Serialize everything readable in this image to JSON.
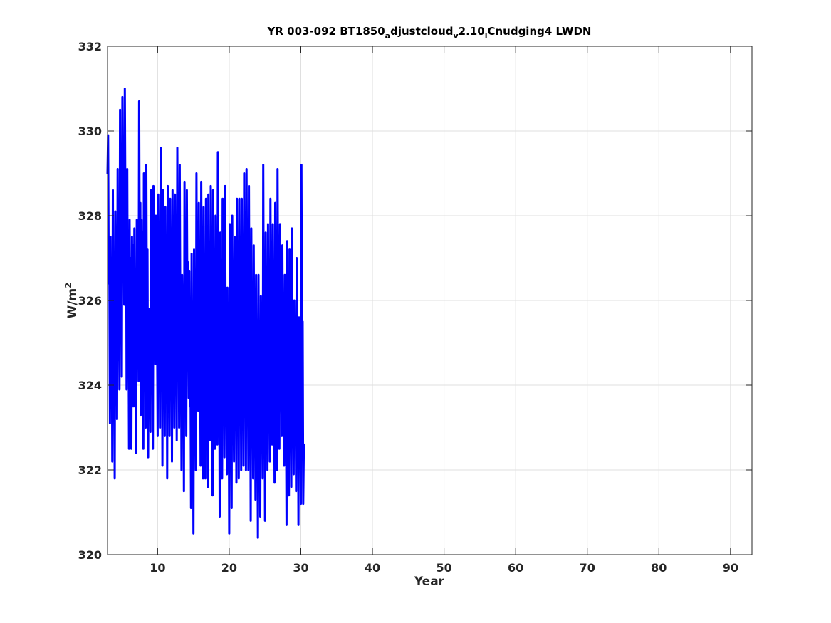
{
  "chart_data": {
    "type": "line",
    "title": "YR 003-092 BT1850_adjustcloud_v2.10_lCnudging4 LWDN",
    "title_parts": [
      {
        "text": "YR 003-092 BT1850",
        "sub": false
      },
      {
        "text": "a",
        "sub": true
      },
      {
        "text": "djustcloud",
        "sub": false
      },
      {
        "text": "v",
        "sub": true
      },
      {
        "text": "2.10",
        "sub": false
      },
      {
        "text": "l",
        "sub": true
      },
      {
        "text": "Cnudging4 LWDN",
        "sub": false
      }
    ],
    "xlabel": "Year",
    "ylabel_base": "W/m",
    "ylabel_sup": "2",
    "xlim": [
      3,
      93
    ],
    "ylim": [
      320,
      332
    ],
    "xticks": [
      10,
      20,
      30,
      40,
      50,
      60,
      70,
      80,
      90
    ],
    "yticks": [
      320,
      322,
      324,
      326,
      328,
      330,
      332
    ],
    "grid": true,
    "line_color": "#0000ff",
    "series": [
      {
        "x_start": 3.0,
        "x_step": 0.08333,
        "values": [
          329.0,
          329.9,
          326.4,
          327.4,
          323.1,
          327.5,
          323.6,
          326.6,
          322.2,
          328.6,
          323.9,
          326.2,
          321.8,
          328.1,
          325.4,
          327.3,
          323.2,
          329.1,
          324.6,
          327.1,
          323.9,
          330.5,
          326.6,
          328.0,
          324.2,
          330.8,
          327.0,
          329.6,
          325.9,
          331.0,
          328.0,
          328.8,
          323.9,
          329.1,
          324.6,
          326.8,
          322.5,
          327.9,
          323.6,
          327.0,
          322.5,
          327.5,
          323.5,
          327.3,
          323.5,
          327.7,
          324.0,
          326.5,
          322.4,
          327.9,
          324.8,
          327.8,
          324.1,
          330.7,
          326.7,
          328.3,
          323.3,
          327.9,
          324.7,
          327.6,
          322.5,
          329.0,
          325.4,
          328.3,
          323.0,
          329.2,
          325.0,
          327.2,
          322.3,
          325.8,
          324.5,
          325.8,
          322.9,
          328.6,
          325.5,
          327.1,
          322.5,
          328.7,
          325.4,
          327.0,
          324.5,
          328.0,
          325.9,
          325.7,
          322.8,
          328.5,
          324.9,
          327.6,
          323.0,
          329.6,
          326.4,
          327.2,
          322.1,
          328.6,
          323.9,
          326.7,
          322.8,
          328.2,
          325.0,
          327.2,
          321.8,
          328.7,
          324.6,
          326.8,
          322.8,
          328.4,
          325.4,
          326.8,
          322.2,
          328.6,
          325.8,
          326.9,
          323.0,
          328.5,
          325.1,
          325.9,
          322.7,
          329.6,
          326.5,
          327.2,
          323.0,
          329.2,
          325.6,
          326.2,
          322.0,
          326.6,
          325.0,
          325.9,
          321.5,
          328.8,
          325.0,
          326.2,
          322.8,
          328.6,
          325.3,
          326.9,
          323.7,
          326.7,
          323.5,
          324.5,
          321.1,
          327.1,
          323.0,
          324.5,
          320.5,
          327.2,
          323.4,
          325.6,
          322.0,
          329.0,
          325.0,
          326.0,
          323.4,
          328.3,
          324.9,
          326.0,
          322.1,
          328.8,
          325.2,
          325.7,
          321.8,
          328.2,
          324.2,
          325.4,
          321.8,
          328.4,
          324.9,
          325.7,
          321.6,
          328.5,
          324.0,
          325.7,
          322.7,
          328.7,
          324.9,
          326.2,
          321.4,
          328.6,
          324.0,
          325.7,
          322.5,
          328.0,
          325.1,
          326.0,
          322.6,
          329.5,
          325.2,
          326.5,
          320.9,
          327.6,
          323.4,
          325.9,
          321.8,
          328.4,
          325.0,
          326.4,
          322.3,
          328.7,
          324.8,
          325.4,
          321.9,
          326.3,
          322.9,
          324.9,
          320.5,
          327.8,
          323.5,
          324.4,
          321.1,
          328.0,
          324.9,
          325.0,
          322.2,
          327.5,
          323.6,
          325.4,
          321.7,
          328.4,
          324.9,
          326.7,
          321.8,
          328.4,
          324.5,
          325.7,
          322.0,
          328.4,
          324.9,
          325.8,
          322.1,
          329.0,
          325.0,
          326.1,
          322.0,
          329.1,
          325.5,
          325.4,
          322.0,
          328.7,
          324.5,
          325.7,
          320.8,
          327.7,
          323.6,
          325.3,
          321.8,
          327.3,
          324.0,
          325.0,
          321.3,
          326.6,
          322.9,
          324.2,
          320.4,
          326.6,
          322.3,
          324.0,
          320.9,
          326.1,
          323.0,
          325.1,
          321.8,
          329.2,
          324.5,
          325.8,
          320.8,
          327.6,
          323.5,
          325.8,
          322.0,
          327.8,
          324.3,
          325.4,
          322.2,
          328.4,
          324.9,
          325.1,
          322.6,
          327.8,
          324.5,
          325.6,
          321.7,
          328.3,
          324.4,
          325.6,
          322.0,
          329.1,
          325.5,
          326.5,
          322.5,
          327.8,
          325.3,
          325.0,
          322.8,
          327.3,
          324.1,
          324.6,
          322.1,
          326.6,
          323.5,
          324.3,
          320.7,
          327.4,
          323.8,
          324.7,
          321.4,
          327.2,
          324.4,
          324.8,
          321.6,
          327.7,
          323.7,
          324.9,
          321.9,
          326.0,
          323.2,
          325.3,
          321.5,
          327.0,
          324.4,
          325.6,
          320.7,
          325.6,
          323.9,
          325.6,
          321.2,
          329.2,
          324.0,
          325.5,
          321.2,
          322.6
        ]
      }
    ]
  }
}
